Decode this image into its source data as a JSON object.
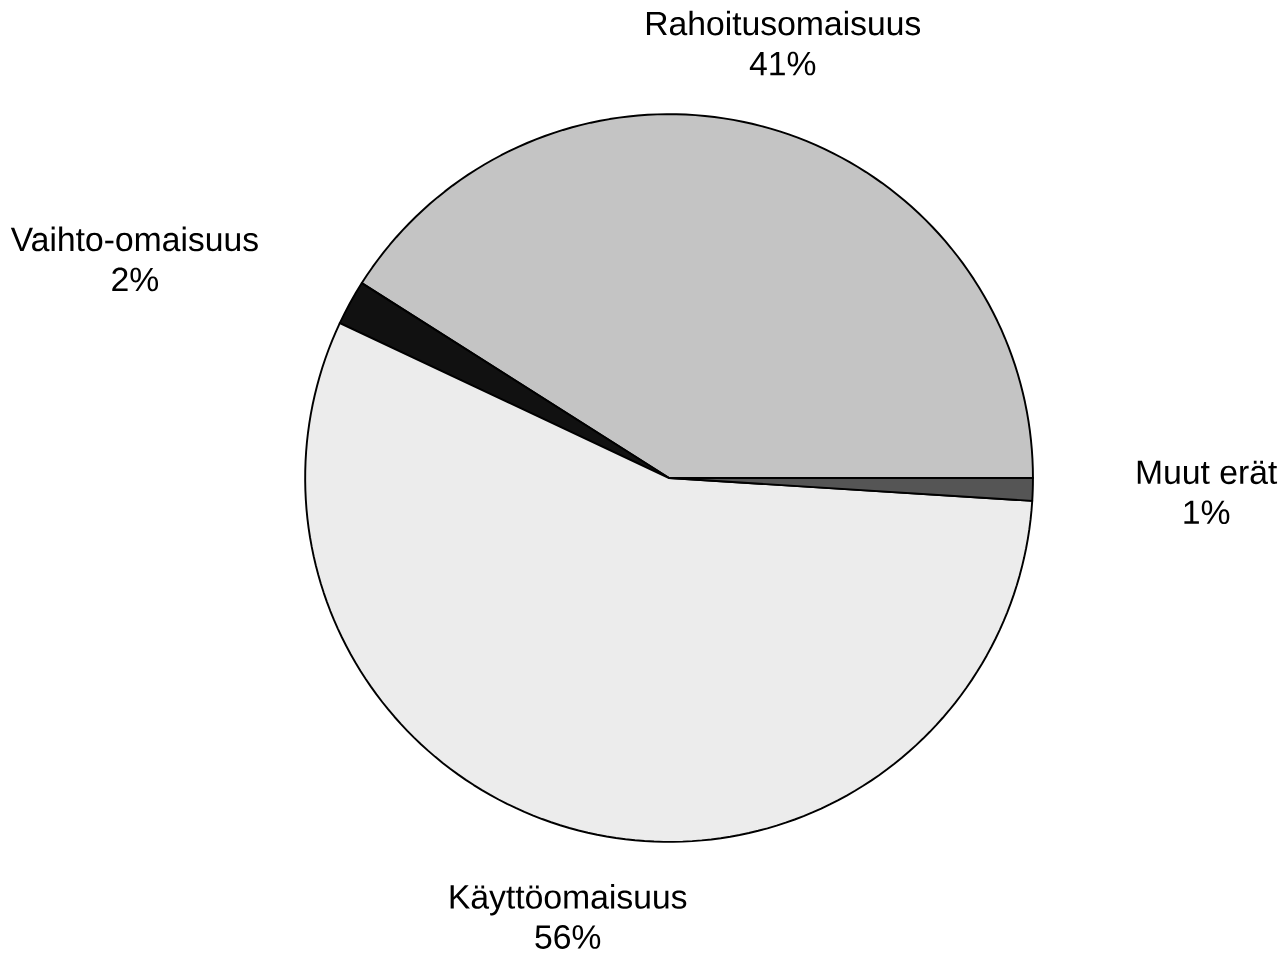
{
  "chart_data": {
    "type": "pie",
    "categories": [
      "Rahoitusomaisuus",
      "Vaihto-omaisuus",
      "Käyttöomaisuus",
      "Muut erät"
    ],
    "values": [
      41,
      2,
      56,
      1
    ],
    "value_labels": [
      "41%",
      "2%",
      "56%",
      "1%"
    ],
    "colors": [
      "#c4c4c4",
      "#111111",
      "#ececec",
      "#555555"
    ]
  }
}
